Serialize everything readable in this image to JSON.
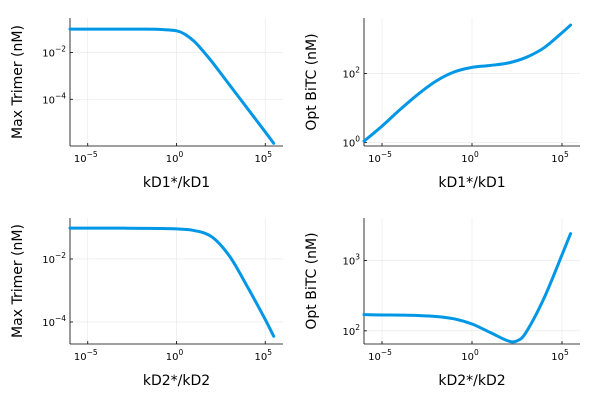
{
  "chart_data": [
    {
      "type": "line",
      "xlabel": "kD1*/kD1",
      "ylabel": "Max Trimer (nM)",
      "xscale": "log",
      "yscale": "log",
      "xlim": [
        1e-06,
        1000000.0
      ],
      "ylim": [
        1e-06,
        0.3
      ],
      "xticks": [
        {
          "base": "10",
          "exp": "−5",
          "value": 1e-05
        },
        {
          "base": "10",
          "exp": "0",
          "value": 1
        },
        {
          "base": "10",
          "exp": "5",
          "value": 100000.0
        }
      ],
      "yticks": [
        {
          "base": "10",
          "exp": "−2",
          "value": 0.01
        },
        {
          "base": "10",
          "exp": "−4",
          "value": 0.0001
        }
      ],
      "grid": true,
      "color": "#0097e6",
      "series": [
        {
          "x": [
            1e-06,
            1e-05,
            0.0001,
            0.001,
            0.01,
            0.1,
            1,
            3,
            10,
            30,
            100,
            1000,
            10000.0,
            100000.0,
            300000.0
          ],
          "y": [
            0.1,
            0.1,
            0.1,
            0.1,
            0.1,
            0.098,
            0.085,
            0.06,
            0.03,
            0.012,
            0.004,
            0.0004,
            4e-05,
            4e-06,
            1.3e-06
          ]
        }
      ]
    },
    {
      "type": "line",
      "xlabel": "kD1*/kD1",
      "ylabel": "Opt BiTC (nM)",
      "xscale": "log",
      "yscale": "log",
      "xlim": [
        1e-06,
        1000000.0
      ],
      "ylim": [
        0.8,
        4000
      ],
      "xticks": [
        {
          "base": "10",
          "exp": "−5",
          "value": 1e-05
        },
        {
          "base": "10",
          "exp": "0",
          "value": 1
        },
        {
          "base": "10",
          "exp": "5",
          "value": 100000.0
        }
      ],
      "yticks": [
        {
          "base": "10",
          "exp": "2",
          "value": 100
        },
        {
          "base": "10",
          "exp": "0",
          "value": 1
        }
      ],
      "grid": true,
      "color": "#0097e6",
      "series": [
        {
          "x": [
            1e-06,
            1e-05,
            0.0001,
            0.001,
            0.01,
            0.1,
            1,
            10,
            100,
            1000,
            10000.0,
            100000.0,
            300000.0
          ],
          "y": [
            1.1,
            3,
            9,
            25,
            60,
            110,
            150,
            170,
            200,
            290,
            550,
            1500,
            2500
          ]
        }
      ]
    },
    {
      "type": "line",
      "xlabel": "kD2*/kD2",
      "ylabel": "Max Trimer (nM)",
      "xscale": "log",
      "yscale": "log",
      "xlim": [
        1e-06,
        1000000.0
      ],
      "ylim": [
        2e-05,
        0.2
      ],
      "xticks": [
        {
          "base": "10",
          "exp": "−5",
          "value": 1e-05
        },
        {
          "base": "10",
          "exp": "0",
          "value": 1
        },
        {
          "base": "10",
          "exp": "5",
          "value": 100000.0
        }
      ],
      "yticks": [
        {
          "base": "10",
          "exp": "−2",
          "value": 0.01
        },
        {
          "base": "10",
          "exp": "−4",
          "value": 0.0001
        }
      ],
      "grid": true,
      "color": "#0097e6",
      "series": [
        {
          "x": [
            1e-06,
            1e-05,
            0.0001,
            0.001,
            0.01,
            0.1,
            1,
            10,
            100,
            1000,
            10000.0,
            100000.0,
            300000.0
          ],
          "y": [
            0.095,
            0.095,
            0.095,
            0.095,
            0.094,
            0.093,
            0.09,
            0.08,
            0.05,
            0.012,
            0.0013,
            0.00012,
            3.5e-05
          ]
        }
      ]
    },
    {
      "type": "line",
      "xlabel": "kD2*/kD2",
      "ylabel": "Opt BiTC (nM)",
      "xscale": "log",
      "yscale": "log",
      "xlim": [
        1e-06,
        1000000.0
      ],
      "ylim": [
        65,
        4000
      ],
      "xticks": [
        {
          "base": "10",
          "exp": "−5",
          "value": 1e-05
        },
        {
          "base": "10",
          "exp": "0",
          "value": 1
        },
        {
          "base": "10",
          "exp": "5",
          "value": 100000.0
        }
      ],
      "yticks": [
        {
          "base": "10",
          "exp": "3",
          "value": 1000
        },
        {
          "base": "10",
          "exp": "2",
          "value": 100
        }
      ],
      "grid": true,
      "color": "#0097e6",
      "series": [
        {
          "x": [
            1e-06,
            1e-05,
            0.0001,
            0.001,
            0.01,
            0.1,
            1,
            10,
            100,
            316,
            1000,
            10000.0,
            100000.0,
            300000.0
          ],
          "y": [
            170,
            168,
            167,
            165,
            160,
            148,
            125,
            95,
            72,
            72,
            95,
            290,
            1200,
            2400
          ]
        }
      ]
    }
  ]
}
